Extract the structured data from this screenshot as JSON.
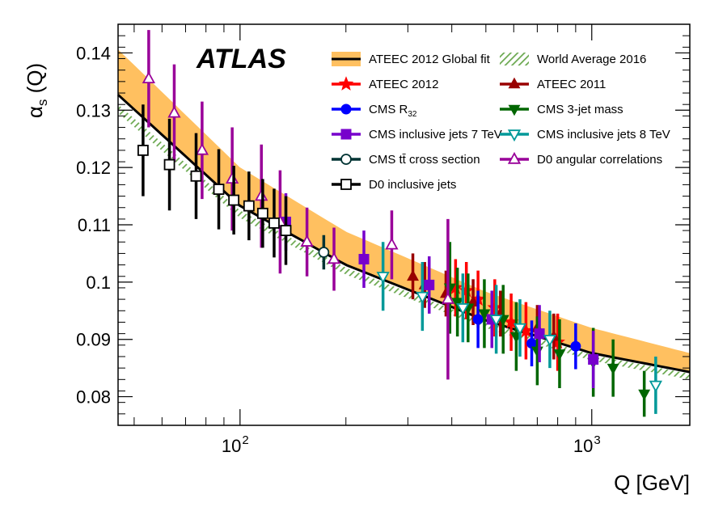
{
  "chart_data": {
    "type": "scatter",
    "title": "",
    "experiment_label": "ATLAS",
    "ylabel": "α_s (Q)",
    "ylabel_parts": {
      "alpha": "α",
      "sub": "s",
      "rest": " (Q)"
    },
    "xlabel": "Q [GeV]",
    "xscale": "log",
    "xlim": [
      45,
      1900
    ],
    "ylim": [
      0.075,
      0.145
    ],
    "yticks": [
      0.08,
      0.09,
      0.1,
      0.11,
      0.12,
      0.13,
      0.14
    ],
    "ytick_labels": [
      "0.08",
      "0.09",
      "0.1",
      "0.11",
      "0.12",
      "0.13",
      "0.14"
    ],
    "xticks_major": [
      100,
      1000
    ],
    "xtick_labels": [
      {
        "base": "10",
        "exp": "2"
      },
      {
        "base": "10",
        "exp": "3"
      }
    ],
    "xticks_minor": [
      50,
      60,
      70,
      80,
      90,
      200,
      300,
      400,
      500,
      600,
      700,
      800,
      900
    ],
    "curves": {
      "fit_central": {
        "name": "ATEEC 2012 Global fit",
        "color": "#000000",
        "points": [
          [
            45,
            0.1327
          ],
          [
            100,
            0.1133
          ],
          [
            200,
            0.103
          ],
          [
            500,
            0.0933
          ],
          [
            1000,
            0.0876
          ],
          [
            1900,
            0.0843
          ]
        ]
      },
      "fit_band": {
        "color": "#ffc060",
        "upper": [
          [
            45,
            0.1406
          ],
          [
            100,
            0.12
          ],
          [
            200,
            0.1088
          ],
          [
            500,
            0.0983
          ],
          [
            1000,
            0.092
          ],
          [
            1900,
            0.0876
          ]
        ],
        "lower": [
          [
            45,
            0.1327
          ],
          [
            100,
            0.1133
          ],
          [
            200,
            0.103
          ],
          [
            500,
            0.0933
          ],
          [
            1000,
            0.0876
          ],
          [
            1900,
            0.0843
          ]
        ]
      },
      "world_average": {
        "name": "World Average 2016",
        "color": "#6aa84f",
        "upper": [
          [
            45,
            0.131
          ],
          [
            100,
            0.1125
          ],
          [
            200,
            0.1025
          ],
          [
            500,
            0.093
          ],
          [
            1000,
            0.0873
          ],
          [
            1900,
            0.084
          ]
        ],
        "lower": [
          [
            45,
            0.1295
          ],
          [
            100,
            0.1112
          ],
          [
            200,
            0.1013
          ],
          [
            500,
            0.092
          ],
          [
            1000,
            0.0863
          ],
          [
            1900,
            0.083
          ]
        ]
      }
    },
    "series": [
      {
        "name": "ATEEC 2012",
        "color": "#ff0000",
        "marker": "star",
        "filled": true,
        "points": [
          [
            410,
            0.099,
            0.005
          ],
          [
            440,
            0.0985,
            0.005
          ],
          [
            475,
            0.097,
            0.005
          ],
          [
            530,
            0.0955,
            0.005
          ],
          [
            590,
            0.093,
            0.005
          ],
          [
            650,
            0.0915,
            0.005
          ],
          [
            800,
            0.0895,
            0.005
          ]
        ]
      },
      {
        "name": "ATEEC 2011",
        "color": "#990000",
        "marker": "triangle-up",
        "filled": true,
        "points": [
          [
            310,
            0.101,
            0.004
          ],
          [
            335,
            0.0995,
            0.004
          ],
          [
            385,
            0.098,
            0.004
          ],
          [
            460,
            0.0965,
            0.004
          ],
          [
            550,
            0.0945,
            0.004
          ],
          [
            700,
            0.092,
            0.004
          ],
          [
            780,
            0.0905,
            0.004
          ]
        ]
      },
      {
        "name": "CMS R₃₂",
        "color": "#0000ff",
        "marker": "circle",
        "filled": true,
        "points": [
          [
            475,
            0.0935,
            0.005
          ],
          [
            675,
            0.0893,
            0.004
          ],
          [
            900,
            0.0888,
            0.004
          ]
        ]
      },
      {
        "name": "CMS 3-jet mass",
        "color": "#006600",
        "marker": "triangle-down",
        "filled": true,
        "points": [
          [
            395,
            0.099,
            0.008
          ],
          [
            415,
            0.0965,
            0.006
          ],
          [
            445,
            0.0955,
            0.006
          ],
          [
            495,
            0.0945,
            0.006
          ],
          [
            560,
            0.0935,
            0.006
          ],
          [
            610,
            0.0905,
            0.006
          ],
          [
            700,
            0.088,
            0.006
          ],
          [
            810,
            0.0875,
            0.006
          ],
          [
            1010,
            0.086,
            0.006
          ],
          [
            1150,
            0.085,
            0.005
          ],
          [
            1410,
            0.0805,
            0.004
          ]
        ]
      },
      {
        "name": "CMS inclusive jets 7 TeV",
        "color": "#7700cc",
        "marker": "square",
        "filled": true,
        "points": [
          [
            135,
            0.1105,
            0.005
          ],
          [
            225,
            0.104,
            0.005
          ],
          [
            345,
            0.0995,
            0.005
          ],
          [
            520,
            0.0935,
            0.005
          ],
          [
            710,
            0.091,
            0.005
          ],
          [
            1010,
            0.0865,
            0.005
          ]
        ]
      },
      {
        "name": "CMS inclusive jets 8 TeV",
        "color": "#009999",
        "marker": "triangle-down",
        "filled": false,
        "points": [
          [
            255,
            0.101,
            0.006
          ],
          [
            330,
            0.0975,
            0.006
          ],
          [
            430,
            0.0955,
            0.006
          ],
          [
            535,
            0.0935,
            0.006
          ],
          [
            625,
            0.092,
            0.005
          ],
          [
            760,
            0.09,
            0.005
          ],
          [
            1520,
            0.082,
            0.005
          ]
        ]
      },
      {
        "name": "CMS tt̄ cross section",
        "color": "#003333",
        "marker": "circle",
        "filled": false,
        "points": [
          [
            173,
            0.1052,
            0.003
          ]
        ]
      },
      {
        "name": "D0 angular correlations",
        "color": "#990099",
        "marker": "triangle-up",
        "filled": false,
        "points": [
          [
            55,
            0.1355,
            0.0085
          ],
          [
            65,
            0.1295,
            0.0085
          ],
          [
            78,
            0.123,
            0.0085
          ],
          [
            95,
            0.118,
            0.009
          ],
          [
            115,
            0.115,
            0.009
          ],
          [
            130,
            0.1105,
            0.009
          ],
          [
            155,
            0.107,
            0.006
          ],
          [
            185,
            0.104,
            0.0055
          ],
          [
            270,
            0.1065,
            0.006
          ],
          [
            390,
            0.097,
            0.014
          ]
        ]
      },
      {
        "name": "D0 inclusive jets",
        "color": "#000000",
        "marker": "square",
        "filled": false,
        "points": [
          [
            53,
            0.123,
            0.008
          ],
          [
            63,
            0.1205,
            0.008
          ],
          [
            75,
            0.1185,
            0.0075
          ],
          [
            87,
            0.1162,
            0.007
          ],
          [
            96,
            0.1143,
            0.006
          ],
          [
            106,
            0.1133,
            0.006
          ],
          [
            116,
            0.112,
            0.006
          ],
          [
            125,
            0.1103,
            0.006
          ],
          [
            135,
            0.109,
            0.006
          ]
        ]
      }
    ],
    "legend": [
      {
        "label": "ATEEC 2012 Global fit",
        "kind": "band-line",
        "color": "#000000",
        "fill": "#ffc060"
      },
      {
        "label": "World Average 2016",
        "kind": "hatch",
        "color": "#6aa84f"
      },
      {
        "label": "ATEEC 2012",
        "kind": "marker",
        "series": 0
      },
      {
        "label": "ATEEC 2011",
        "kind": "marker",
        "series": 1
      },
      {
        "label": "CMS R",
        "sublabel": "32",
        "kind": "marker",
        "series": 2
      },
      {
        "label": "CMS 3-jet mass",
        "kind": "marker",
        "series": 3
      },
      {
        "label": "CMS inclusive jets 7 TeV",
        "kind": "marker",
        "series": 4
      },
      {
        "label": "CMS inclusive jets 8 TeV",
        "kind": "marker",
        "series": 5
      },
      {
        "label": "CMS tt̄ cross section",
        "kind": "marker",
        "series": 6
      },
      {
        "label": "D0 angular correlations",
        "kind": "marker",
        "series": 7
      },
      {
        "label": "D0 inclusive jets",
        "kind": "marker",
        "series": 8
      }
    ],
    "legend_position": "top-right"
  }
}
